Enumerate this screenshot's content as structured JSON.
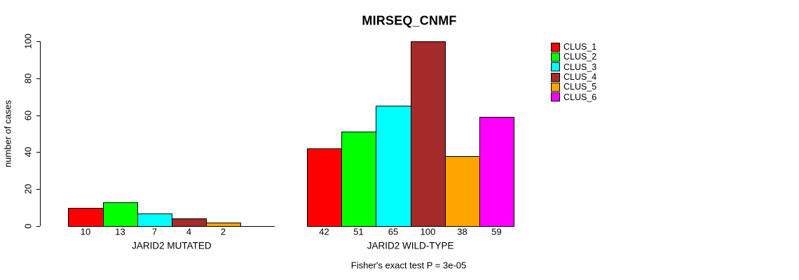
{
  "chart_data": {
    "type": "bar",
    "title": "MIRSEQ_CNMF",
    "ylabel": "number of cases",
    "ylim": [
      0,
      100
    ],
    "yticks": [
      0,
      20,
      40,
      60,
      80,
      100
    ],
    "grid": false,
    "legend_position": "top-right",
    "annotation": "Fisher's exact test P = 3e-05",
    "series": [
      {
        "name": "CLUS_1",
        "color": "#ff0000"
      },
      {
        "name": "CLUS_2",
        "color": "#00ff00"
      },
      {
        "name": "CLUS_3",
        "color": "#00ffff"
      },
      {
        "name": "CLUS_4",
        "color": "#a52a2a"
      },
      {
        "name": "CLUS_5",
        "color": "#ffa500"
      },
      {
        "name": "CLUS_6",
        "color": "#ff00ff"
      }
    ],
    "groups": [
      {
        "label": "JARID2 MUTATED",
        "values": [
          10,
          13,
          7,
          4,
          2,
          0
        ],
        "value_labels": [
          "10",
          "13",
          "7",
          "4",
          "2",
          ""
        ]
      },
      {
        "label": "JARID2 WILD-TYPE",
        "values": [
          42,
          51,
          65,
          100,
          38,
          59
        ],
        "value_labels": [
          "42",
          "51",
          "65",
          "100",
          "38",
          "59"
        ]
      }
    ]
  }
}
